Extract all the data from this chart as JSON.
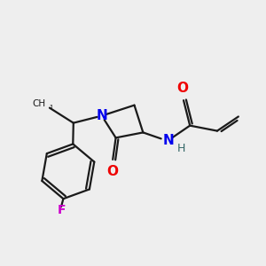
{
  "background_color": "#eeeeee",
  "bond_color": "#1a1a1a",
  "N_color": "#0000ee",
  "O_color": "#ee0000",
  "F_color": "#cc00cc",
  "H_color": "#336666",
  "bond_width": 1.6,
  "figsize": [
    3.0,
    3.0
  ],
  "dpi": 100,
  "xlim": [
    0,
    10
  ],
  "ylim": [
    0,
    10
  ]
}
